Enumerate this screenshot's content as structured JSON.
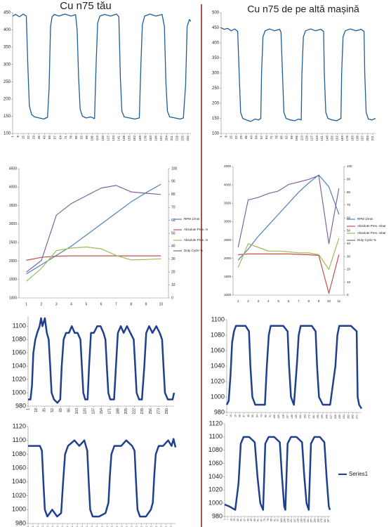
{
  "headings": {
    "left": "Cu n75 tău",
    "right": "Cu n75 de pe altă mașină",
    "color": "#e0201b"
  },
  "chart_data": [
    {
      "type": "line",
      "ylim": [
        100,
        450
      ],
      "yticks": [
        100,
        150,
        200,
        250,
        300,
        350,
        400,
        450
      ],
      "xlim": [
        1,
        236
      ],
      "xticks": [
        1,
        8,
        15,
        22,
        29,
        36,
        43,
        50,
        57,
        64,
        71,
        78,
        85,
        92,
        99,
        106,
        113,
        120,
        127,
        134,
        141,
        148,
        155,
        162,
        169,
        176,
        183,
        190,
        197,
        204,
        211,
        218,
        225,
        232
      ],
      "x": [
        1,
        5,
        10,
        15,
        19,
        21,
        23,
        26,
        30,
        36,
        42,
        47,
        49,
        51,
        53,
        56,
        62,
        70,
        78,
        84,
        86,
        88,
        90,
        93,
        98,
        104,
        109,
        111,
        113,
        116,
        122,
        130,
        138,
        141,
        143,
        145,
        148,
        155,
        162,
        168,
        170,
        172,
        175,
        182,
        190,
        198,
        201,
        203,
        205,
        208,
        215,
        222,
        226,
        229,
        231,
        234,
        236
      ],
      "series": [
        {
          "color": "#1f5c99",
          "values": [
            440,
            445,
            438,
            446,
            440,
            300,
            180,
            155,
            148,
            145,
            142,
            147,
            230,
            410,
            438,
            445,
            440,
            446,
            440,
            444,
            400,
            260,
            170,
            150,
            145,
            148,
            143,
            300,
            420,
            440,
            445,
            440,
            446,
            438,
            260,
            165,
            148,
            145,
            142,
            145,
            300,
            415,
            440,
            446,
            440,
            445,
            410,
            250,
            165,
            148,
            145,
            142,
            145,
            240,
            410,
            430,
            425
          ]
        }
      ]
    },
    {
      "type": "line",
      "ylim": [
        100,
        500
      ],
      "yticks": [
        100,
        150,
        200,
        250,
        300,
        350,
        400,
        450,
        500
      ],
      "xlim": [
        1,
        215
      ],
      "xticks": [
        1,
        8,
        15,
        22,
        29,
        36,
        43,
        50,
        57,
        64,
        71,
        78,
        85,
        92,
        99,
        106,
        113,
        120,
        127,
        134,
        141,
        148,
        155,
        162,
        169,
        176,
        183,
        190,
        197,
        204,
        211
      ],
      "x": [
        1,
        5,
        10,
        15,
        20,
        24,
        26,
        28,
        31,
        36,
        42,
        48,
        53,
        56,
        57,
        59,
        62,
        68,
        75,
        82,
        84,
        86,
        88,
        91,
        97,
        103,
        108,
        112,
        113,
        115,
        118,
        125,
        132,
        139,
        143,
        144,
        146,
        149,
        155,
        161,
        167,
        168,
        170,
        173,
        180,
        188,
        195,
        199,
        200,
        202,
        205,
        210,
        213,
        215
      ],
      "series": [
        {
          "color": "#1f5c99",
          "values": [
            450,
            445,
            448,
            440,
            446,
            438,
            300,
            170,
            150,
            145,
            140,
            148,
            145,
            150,
            300,
            420,
            440,
            446,
            440,
            445,
            435,
            300,
            170,
            150,
            145,
            142,
            148,
            145,
            300,
            420,
            440,
            446,
            440,
            445,
            438,
            300,
            170,
            150,
            145,
            142,
            150,
            300,
            420,
            440,
            446,
            440,
            445,
            438,
            300,
            170,
            148,
            145,
            148,
            150
          ]
        }
      ]
    },
    {
      "type": "line",
      "ylim": [
        1000,
        4500
      ],
      "yticks": [
        1000,
        1500,
        2000,
        2500,
        3000,
        3500,
        4000,
        4500
      ],
      "y2lim": [
        0,
        100
      ],
      "y2ticks": [
        0,
        10,
        20,
        30,
        40,
        50,
        60,
        70,
        80,
        90,
        100
      ],
      "categories": [
        "1",
        "2",
        "3",
        "4",
        "5",
        "6",
        "7",
        "8",
        "9",
        "10"
      ],
      "legend": "right",
      "series": [
        {
          "name": "RPM 1/min",
          "color": "#4f81bd",
          "values": [
            1650,
            1900,
            2150,
            2400,
            2700,
            3000,
            3300,
            3600,
            3850,
            4080
          ]
        },
        {
          "name": "Absolute Pres. m",
          "color": "#c0504d",
          "values": [
            2020,
            2100,
            2130,
            2140,
            2140,
            2140,
            2140,
            2140,
            2140,
            2140
          ]
        },
        {
          "name": "Absolute Pres. m",
          "color": "#9bbb59",
          "values": [
            1450,
            1800,
            2280,
            2350,
            2380,
            2330,
            2150,
            2030,
            2040,
            2060
          ]
        },
        {
          "name": "Duty Cycle %",
          "color": "#8064a2",
          "axis": "y2",
          "values": [
            20,
            29,
            64,
            73,
            79,
            85,
            87,
            82,
            81,
            80
          ]
        }
      ]
    },
    {
      "type": "line",
      "ylim": [
        1000,
        4500
      ],
      "yticks": [
        1000,
        1500,
        2000,
        2500,
        3000,
        3500,
        4000,
        4500
      ],
      "y2lim": [
        0,
        100
      ],
      "y2ticks": [
        0,
        10,
        20,
        30,
        40,
        50,
        60,
        70,
        80,
        90,
        100
      ],
      "categories": [
        "1",
        "2",
        "3",
        "4",
        "5",
        "6",
        "7",
        "8",
        "9",
        "10",
        "11"
      ],
      "legend": "right",
      "series": [
        {
          "name": "RPM 1/min",
          "color": "#4f81bd",
          "values": [
            1950,
            2250,
            2600,
            2900,
            3200,
            3500,
            3800,
            4050,
            4270,
            3950,
            3200
          ]
        },
        {
          "name": "Absolute Pres. mbar",
          "color": "#c0504d",
          "values": [
            2100,
            2120,
            2120,
            2120,
            2120,
            2120,
            2110,
            2100,
            2080,
            1050,
            2100
          ]
        },
        {
          "name": "Absolute Pres. mbar",
          "color": "#9bbb59",
          "values": [
            1750,
            2400,
            2300,
            2200,
            2200,
            2180,
            2150,
            2150,
            2100,
            1700,
            2550
          ]
        },
        {
          "name": "Duty Cycle %",
          "color": "#8064a2",
          "axis": "y2",
          "values": [
            37,
            74,
            76,
            79,
            81,
            86,
            88,
            90,
            93,
            40,
            83
          ]
        }
      ]
    },
    {
      "type": "line",
      "ylim": [
        980,
        1115
      ],
      "yticks": [
        980,
        1000,
        1020,
        1040,
        1060,
        1080,
        1100
      ],
      "xlim": [
        1,
        305
      ],
      "xticks": [
        1,
        18,
        35,
        52,
        69,
        86,
        103,
        120,
        137,
        154,
        171,
        188,
        205,
        222,
        239,
        256,
        273,
        290
      ],
      "x": [
        1,
        6,
        9,
        12,
        16,
        20,
        25,
        28,
        31,
        36,
        40,
        44,
        47,
        50,
        55,
        62,
        68,
        71,
        75,
        80,
        86,
        92,
        98,
        104,
        110,
        113,
        116,
        120,
        125,
        128,
        132,
        138,
        145,
        152,
        158,
        162,
        165,
        168,
        172,
        180,
        184,
        188,
        194,
        200,
        207,
        214,
        221,
        224,
        227,
        232,
        238,
        243,
        247,
        253,
        260,
        268,
        275,
        280,
        283,
        286,
        292,
        298,
        302,
        305
      ],
      "series": [
        {
          "color": "#1f3f8f",
          "values": [
            990,
            990,
            1010,
            1060,
            1080,
            1090,
            1100,
            1112,
            1100,
            1112,
            1090,
            1080,
            1040,
            1000,
            990,
            985,
            990,
            1040,
            1080,
            1090,
            1090,
            1100,
            1090,
            1090,
            1080,
            1040,
            1000,
            990,
            990,
            1040,
            1090,
            1090,
            1100,
            1100,
            1090,
            1080,
            1040,
            1000,
            990,
            990,
            1040,
            1090,
            1100,
            1090,
            1100,
            1090,
            1080,
            1040,
            1000,
            990,
            990,
            1040,
            1090,
            1100,
            1090,
            1100,
            1090,
            1080,
            1040,
            1000,
            990,
            990,
            990,
            1000
          ]
        }
      ]
    },
    {
      "type": "line",
      "ylim": [
        980,
        1100
      ],
      "yticks": [
        980,
        1000,
        1020,
        1040,
        1060,
        1080,
        1100
      ],
      "xlim": [
        1,
        280
      ],
      "xticks": [
        1,
        10,
        19,
        28,
        37,
        46,
        55,
        64,
        73,
        82,
        91,
        100,
        109,
        118,
        127,
        136,
        145,
        154,
        163,
        172,
        181,
        190,
        199,
        208,
        217,
        226,
        235,
        244,
        253,
        262,
        271
      ],
      "x": [
        1,
        5,
        9,
        12,
        16,
        20,
        30,
        40,
        47,
        50,
        54,
        60,
        70,
        80,
        84,
        88,
        92,
        105,
        118,
        127,
        130,
        134,
        140,
        146,
        150,
        154,
        165,
        177,
        185,
        188,
        192,
        200,
        215,
        226,
        230,
        234,
        245,
        258,
        270,
        272,
        275,
        280
      ],
      "series": [
        {
          "color": "#1f3f8f",
          "values": [
            990,
            995,
            1030,
            1070,
            1085,
            1092,
            1092,
            1092,
            1085,
            1040,
            1000,
            990,
            990,
            990,
            1040,
            1080,
            1092,
            1092,
            1092,
            1085,
            1040,
            1000,
            990,
            1040,
            1080,
            1092,
            1092,
            1092,
            1085,
            1040,
            1000,
            990,
            990,
            1040,
            1080,
            1092,
            1092,
            1092,
            1085,
            1000,
            990,
            985
          ]
        }
      ]
    },
    {
      "type": "line",
      "ylim": [
        980,
        1120
      ],
      "yticks": [
        980,
        1000,
        1020,
        1040,
        1060,
        1080,
        1100,
        1120
      ],
      "xlim": [
        1,
        300
      ],
      "xticks": [
        1,
        11,
        21,
        31,
        41,
        51,
        61,
        71,
        81,
        91,
        101,
        111,
        121,
        131,
        141,
        151,
        161,
        171,
        181,
        191,
        201,
        211,
        221,
        231,
        241,
        251,
        261,
        271,
        281,
        291
      ],
      "x": [
        1,
        5,
        15,
        25,
        29,
        32,
        35,
        40,
        50,
        60,
        68,
        72,
        76,
        82,
        95,
        105,
        115,
        121,
        124,
        127,
        132,
        145,
        158,
        164,
        167,
        170,
        176,
        190,
        200,
        212,
        217,
        220,
        223,
        228,
        240,
        250,
        254,
        257,
        260,
        266,
        275,
        285,
        292,
        296,
        300
      ],
      "series": [
        {
          "color": "#1f3f8f",
          "values": [
            1092,
            1092,
            1092,
            1092,
            1085,
            1040,
            1000,
            990,
            1000,
            990,
            995,
            1040,
            1080,
            1092,
            1100,
            1092,
            1100,
            1085,
            1040,
            1000,
            990,
            990,
            995,
            1010,
            1050,
            1080,
            1092,
            1092,
            1100,
            1092,
            1085,
            1040,
            1000,
            990,
            990,
            1000,
            1010,
            1050,
            1080,
            1092,
            1092,
            1100,
            1092,
            1102,
            1090
          ]
        }
      ]
    },
    {
      "type": "line",
      "ylim": [
        980,
        1120
      ],
      "yticks": [
        980,
        1000,
        1020,
        1040,
        1060,
        1080,
        1100,
        1120
      ],
      "xlim": [
        1,
        190
      ],
      "xticks": [
        1,
        7,
        13,
        19,
        25,
        31,
        37,
        43,
        49,
        55,
        61,
        67,
        73,
        79,
        85,
        91,
        97,
        103,
        109,
        115,
        121,
        127,
        133,
        139,
        145,
        151,
        157,
        163,
        169,
        175,
        181,
        187
      ],
      "x": [
        1,
        10,
        20,
        26,
        30,
        35,
        45,
        55,
        60,
        65,
        70,
        74,
        80,
        90,
        100,
        104,
        108,
        110,
        114,
        120,
        130,
        140,
        144,
        148,
        152,
        156,
        162,
        172,
        180,
        184,
        188,
        190
      ],
      "legend": "right",
      "series": [
        {
          "name": "Series1",
          "color": "#1f3f8f",
          "values": [
            998,
            995,
            990,
            1030,
            1090,
            1100,
            1100,
            1092,
            1040,
            1000,
            990,
            1090,
            1100,
            1100,
            1092,
            1040,
            995,
            990,
            1090,
            1100,
            1100,
            1092,
            1040,
            1000,
            990,
            1090,
            1100,
            1100,
            1092,
            1040,
            995,
            990
          ]
        }
      ]
    }
  ]
}
